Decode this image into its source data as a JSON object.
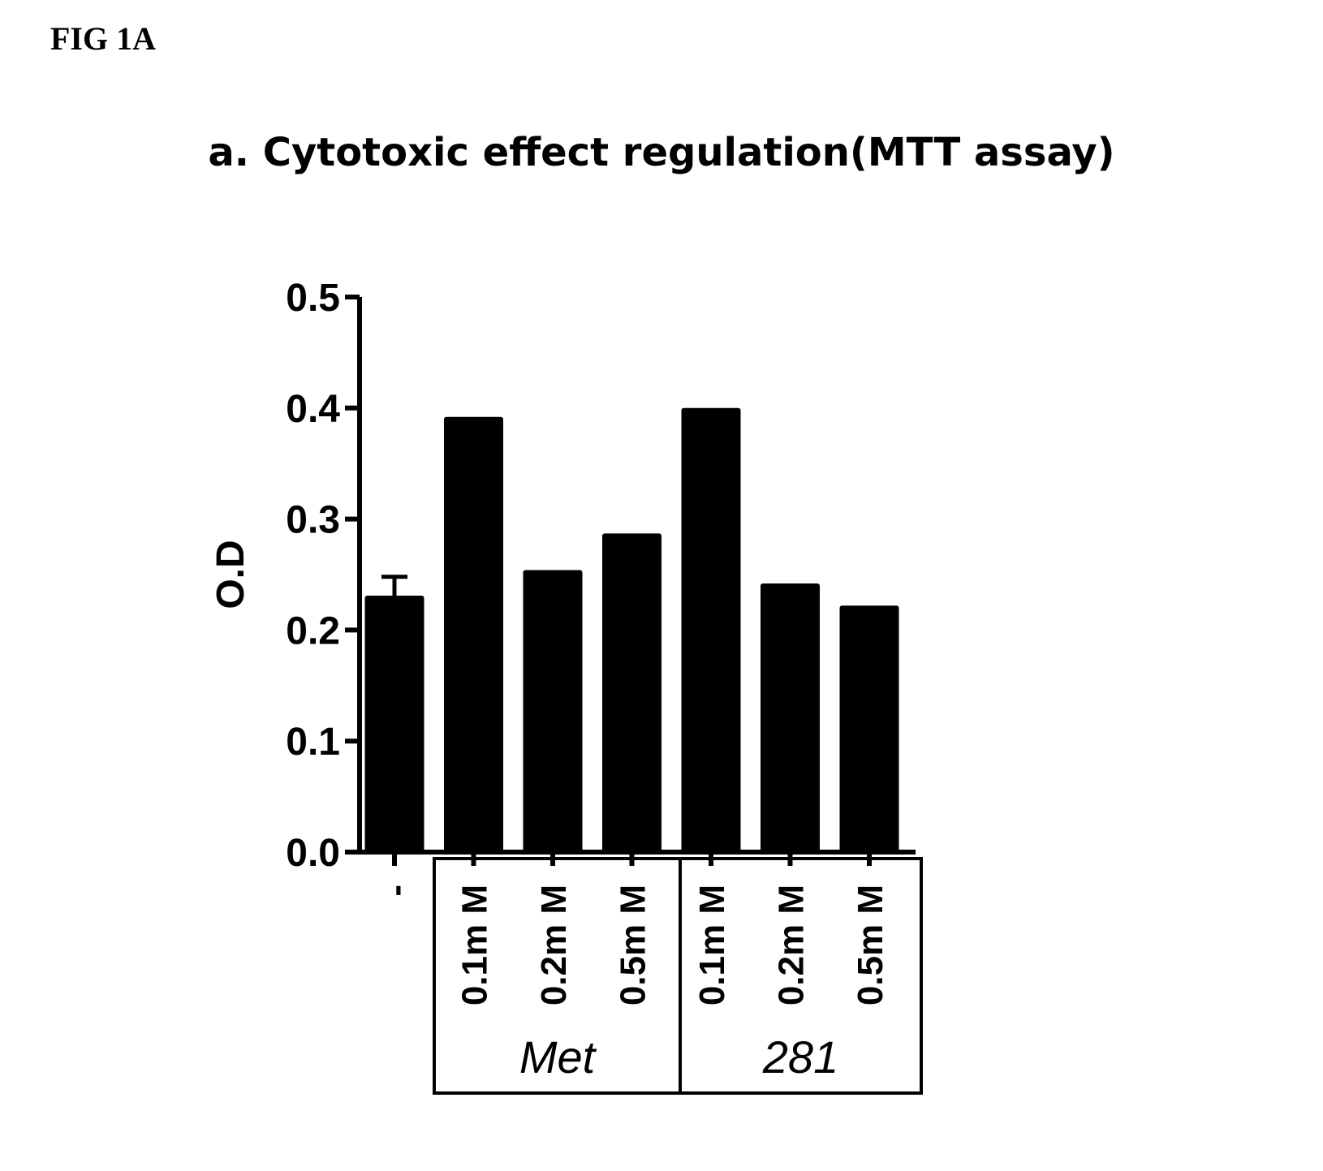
{
  "figure_label": "FIG 1A",
  "chart_data": {
    "type": "bar",
    "title": "a. Cytotoxic effect regulation(MTT assay)",
    "ylabel": "O.D",
    "xlabel": "",
    "ylim": [
      0.0,
      0.5
    ],
    "yticks": [
      "0.0",
      "0.1",
      "0.2",
      "0.3",
      "0.4",
      "0.5"
    ],
    "grid": false,
    "bar_color": "#000000",
    "categories": [
      "-",
      "0.1m M",
      "0.2m M",
      "0.5m M",
      "0.1m M",
      "0.2m M",
      "0.5m M"
    ],
    "values": [
      0.231,
      0.392,
      0.254,
      0.287,
      0.4,
      0.242,
      0.222
    ],
    "error_bars": [
      0.017,
      null,
      null,
      null,
      null,
      null,
      null
    ],
    "groups": [
      {
        "label": "Met",
        "categories": [
          1,
          2,
          3
        ]
      },
      {
        "label": "281",
        "categories": [
          4,
          5,
          6
        ]
      }
    ]
  }
}
